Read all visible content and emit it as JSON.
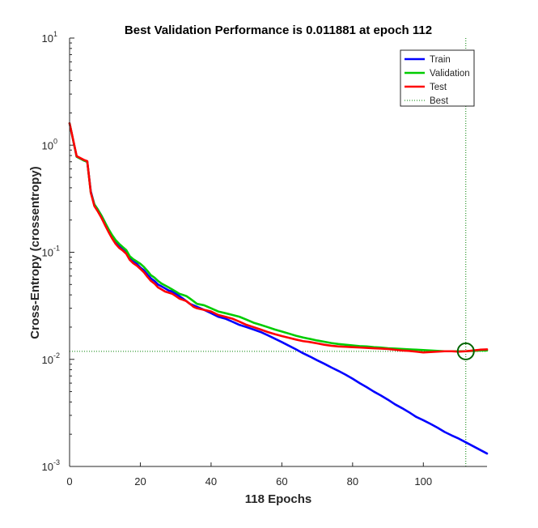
{
  "chart_data": {
    "type": "line",
    "title": "Best Validation Performance is 0.011881 at epoch 112",
    "xlabel": "118 Epochs",
    "ylabel": "Cross-Entropy  (crossentropy)",
    "xlim": [
      0,
      118
    ],
    "ylim": [
      0.001,
      10
    ],
    "yscale": "log",
    "x_ticks": [
      "0",
      "20",
      "40",
      "60",
      "80",
      "100"
    ],
    "y_ticks": [
      {
        "base": "10",
        "exp": "1"
      },
      {
        "base": "10",
        "exp": "0"
      },
      {
        "base": "10",
        "exp": "-1"
      },
      {
        "base": "10",
        "exp": "-2"
      },
      {
        "base": "10",
        "exp": "-3"
      }
    ],
    "grid": false,
    "legend_position": "top-right",
    "best": {
      "epoch": 112,
      "value": 0.011881
    },
    "series": [
      {
        "name": "Train",
        "color": "#0000ff",
        "x": [
          0,
          2,
          4,
          5,
          6,
          7,
          8,
          9,
          10,
          11,
          12,
          13,
          14,
          15,
          16,
          17,
          18,
          19,
          20,
          21,
          22,
          23,
          24,
          25,
          26,
          27,
          28,
          29,
          30,
          31,
          32,
          33,
          34,
          35,
          36,
          38,
          40,
          42,
          44,
          46,
          48,
          50,
          52,
          54,
          56,
          58,
          60,
          62,
          64,
          66,
          68,
          70,
          72,
          74,
          76,
          78,
          80,
          82,
          84,
          86,
          88,
          90,
          92,
          94,
          96,
          98,
          100,
          102,
          104,
          106,
          108,
          110,
          112,
          114,
          116,
          118
        ],
        "values": [
          1.6,
          0.78,
          0.72,
          0.7,
          0.37,
          0.28,
          0.25,
          0.22,
          0.19,
          0.16,
          0.14,
          0.125,
          0.115,
          0.108,
          0.1,
          0.088,
          0.082,
          0.078,
          0.072,
          0.068,
          0.062,
          0.057,
          0.054,
          0.05,
          0.048,
          0.046,
          0.044,
          0.043,
          0.041,
          0.039,
          0.037,
          0.035,
          0.033,
          0.032,
          0.031,
          0.029,
          0.027,
          0.025,
          0.024,
          0.0225,
          0.021,
          0.02,
          0.019,
          0.018,
          0.0168,
          0.0156,
          0.0145,
          0.0134,
          0.0124,
          0.0114,
          0.0106,
          0.0098,
          0.0091,
          0.0084,
          0.0078,
          0.0072,
          0.0066,
          0.006,
          0.0055,
          0.005,
          0.0046,
          0.0042,
          0.0038,
          0.0035,
          0.0032,
          0.0029,
          0.0027,
          0.0025,
          0.0023,
          0.0021,
          0.00195,
          0.00182,
          0.00168,
          0.00155,
          0.00143,
          0.00132
        ]
      },
      {
        "name": "Validation",
        "color": "#00cc00",
        "x": [
          0,
          2,
          4,
          5,
          6,
          7,
          8,
          9,
          10,
          11,
          12,
          13,
          14,
          15,
          16,
          17,
          18,
          19,
          20,
          21,
          22,
          23,
          24,
          25,
          26,
          27,
          28,
          29,
          30,
          31,
          32,
          33,
          34,
          35,
          36,
          38,
          40,
          42,
          44,
          46,
          48,
          50,
          52,
          54,
          56,
          58,
          60,
          62,
          64,
          66,
          68,
          70,
          72,
          74,
          76,
          78,
          80,
          82,
          84,
          86,
          88,
          90,
          92,
          94,
          96,
          98,
          100,
          102,
          104,
          106,
          108,
          110,
          112,
          114,
          116,
          118
        ],
        "values": [
          1.6,
          0.78,
          0.72,
          0.7,
          0.36,
          0.28,
          0.25,
          0.22,
          0.19,
          0.165,
          0.145,
          0.13,
          0.12,
          0.112,
          0.105,
          0.092,
          0.086,
          0.082,
          0.078,
          0.073,
          0.067,
          0.061,
          0.058,
          0.054,
          0.051,
          0.049,
          0.047,
          0.045,
          0.043,
          0.041,
          0.04,
          0.039,
          0.037,
          0.035,
          0.033,
          0.032,
          0.03,
          0.028,
          0.027,
          0.026,
          0.025,
          0.0235,
          0.022,
          0.021,
          0.02,
          0.019,
          0.0182,
          0.0174,
          0.0166,
          0.016,
          0.0155,
          0.015,
          0.0146,
          0.0142,
          0.0139,
          0.0137,
          0.0135,
          0.0133,
          0.0132,
          0.013,
          0.0129,
          0.0127,
          0.0126,
          0.0125,
          0.0124,
          0.0123,
          0.0122,
          0.0121,
          0.012,
          0.0119,
          0.0119,
          0.0119,
          0.0119,
          0.012,
          0.0121,
          0.0121
        ]
      },
      {
        "name": "Test",
        "color": "#ff0000",
        "x": [
          0,
          2,
          4,
          5,
          6,
          7,
          8,
          9,
          10,
          11,
          12,
          13,
          14,
          15,
          16,
          17,
          18,
          19,
          20,
          21,
          22,
          23,
          24,
          25,
          26,
          27,
          28,
          29,
          30,
          31,
          32,
          33,
          34,
          35,
          36,
          38,
          40,
          42,
          44,
          46,
          48,
          50,
          52,
          54,
          56,
          58,
          60,
          62,
          64,
          66,
          68,
          70,
          72,
          74,
          76,
          78,
          80,
          82,
          84,
          86,
          88,
          90,
          92,
          94,
          96,
          98,
          100,
          102,
          104,
          106,
          108,
          110,
          112,
          114,
          116,
          118
        ],
        "values": [
          1.6,
          0.79,
          0.73,
          0.71,
          0.36,
          0.27,
          0.24,
          0.21,
          0.18,
          0.155,
          0.135,
          0.12,
          0.11,
          0.104,
          0.097,
          0.085,
          0.079,
          0.075,
          0.07,
          0.065,
          0.059,
          0.054,
          0.051,
          0.047,
          0.045,
          0.043,
          0.042,
          0.041,
          0.039,
          0.037,
          0.036,
          0.035,
          0.033,
          0.031,
          0.03,
          0.029,
          0.028,
          0.026,
          0.025,
          0.024,
          0.0225,
          0.021,
          0.02,
          0.019,
          0.018,
          0.0172,
          0.0165,
          0.0159,
          0.0153,
          0.0148,
          0.0145,
          0.0141,
          0.0137,
          0.0134,
          0.0132,
          0.0131,
          0.013,
          0.0129,
          0.0128,
          0.0127,
          0.0126,
          0.0125,
          0.0123,
          0.0121,
          0.012,
          0.0118,
          0.0116,
          0.0117,
          0.0118,
          0.0119,
          0.0119,
          0.0118,
          0.0119,
          0.0121,
          0.0123,
          0.0124
        ]
      }
    ],
    "legend": [
      {
        "label": "Train",
        "color": "#0000ff",
        "style": "solid"
      },
      {
        "label": "Validation",
        "color": "#00cc00",
        "style": "solid"
      },
      {
        "label": "Test",
        "color": "#ff0000",
        "style": "solid"
      },
      {
        "label": "Best",
        "color": "#008000",
        "style": "dotted"
      }
    ]
  }
}
